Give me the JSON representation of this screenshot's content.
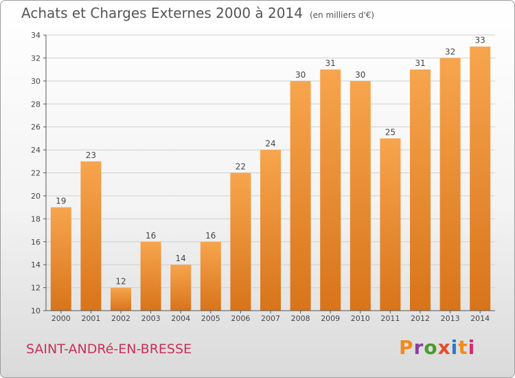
{
  "header": {
    "title": "Achats et Charges Externes 2000 à 2014",
    "unit": "(en milliers d'€)"
  },
  "footer": {
    "place": "SAINT-ANDRé-EN-BRESSE",
    "logo": "Proxiti",
    "logo_colors": [
      "#f08a1c",
      "#8a3fa0",
      "#4a9a2c",
      "#e84a2a",
      "#2a7ac8",
      "#f08a1c",
      "#d82a6a"
    ]
  },
  "chart_data": {
    "type": "bar",
    "categories": [
      "2000",
      "2001",
      "2002",
      "2003",
      "2004",
      "2005",
      "2006",
      "2007",
      "2008",
      "2009",
      "2010",
      "2011",
      "2012",
      "2013",
      "2014"
    ],
    "values": [
      19,
      23,
      12,
      16,
      14,
      16,
      22,
      24,
      30,
      31,
      30,
      25,
      31,
      32,
      33
    ],
    "title": "Achats et Charges Externes 2000 à 2014",
    "unit": "(en milliers d'€)",
    "ylim": [
      10,
      34
    ],
    "yticks": [
      10,
      12,
      14,
      16,
      18,
      20,
      22,
      24,
      26,
      28,
      30,
      32,
      34
    ],
    "grid": true,
    "bar_color_top": "#f7a54e",
    "bar_color_bottom": "#d8741a"
  }
}
